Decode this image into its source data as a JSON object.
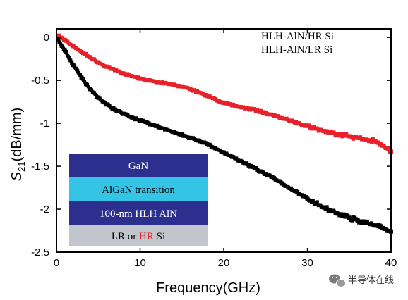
{
  "chart_data": {
    "type": "scatter",
    "title": "",
    "xlabel": "Frequency(GHz)",
    "ylabel_main": "S",
    "ylabel_sub": "21",
    "ylabel_rest": "(dB/mm)",
    "xlim": [
      0,
      40
    ],
    "ylim": [
      -2.5,
      0.1
    ],
    "x_ticks": [
      0,
      10,
      20,
      30,
      40
    ],
    "x_tick_labels": [
      "0",
      "10",
      "20",
      "30",
      "40"
    ],
    "y_ticks": [
      0,
      -0.5,
      -1,
      -1.5,
      -2,
      -2.5
    ],
    "y_tick_labels": [
      "0",
      "-0.5",
      "-1",
      "-1.5",
      "-2",
      "-2.5"
    ],
    "grid": false,
    "legend_position": "top-right",
    "series": [
      {
        "name": "HLH-AlN/HR Si",
        "color": "#e8202a",
        "x": [
          0.2,
          1,
          2,
          3,
          4,
          5,
          6,
          7,
          8,
          9,
          10,
          11,
          12,
          13,
          14,
          15,
          16,
          17,
          18,
          19,
          20,
          21,
          22,
          23,
          24,
          25,
          26,
          27,
          28,
          29,
          30,
          31,
          32,
          33,
          34,
          35,
          36,
          37,
          38,
          39,
          40
        ],
        "y": [
          0.02,
          -0.03,
          -0.1,
          -0.17,
          -0.23,
          -0.29,
          -0.34,
          -0.38,
          -0.42,
          -0.45,
          -0.48,
          -0.5,
          -0.52,
          -0.53,
          -0.55,
          -0.57,
          -0.6,
          -0.64,
          -0.68,
          -0.72,
          -0.76,
          -0.79,
          -0.81,
          -0.83,
          -0.85,
          -0.88,
          -0.91,
          -0.94,
          -0.97,
          -1.0,
          -1.03,
          -1.06,
          -1.09,
          -1.11,
          -1.13,
          -1.15,
          -1.17,
          -1.19,
          -1.21,
          -1.26,
          -1.33
        ]
      },
      {
        "name": "HLH-AlN/LR Si",
        "color": "#000000",
        "x": [
          0.2,
          1,
          2,
          3,
          4,
          5,
          6,
          7,
          8,
          9,
          10,
          11,
          12,
          13,
          14,
          15,
          16,
          17,
          18,
          19,
          20,
          21,
          22,
          23,
          24,
          25,
          26,
          27,
          28,
          29,
          30,
          31,
          32,
          33,
          34,
          35,
          36,
          37,
          38,
          39,
          40
        ],
        "y": [
          -0.03,
          -0.15,
          -0.32,
          -0.47,
          -0.6,
          -0.7,
          -0.78,
          -0.84,
          -0.89,
          -0.93,
          -0.97,
          -1.0,
          -1.03,
          -1.07,
          -1.1,
          -1.13,
          -1.17,
          -1.2,
          -1.24,
          -1.29,
          -1.34,
          -1.39,
          -1.44,
          -1.49,
          -1.54,
          -1.59,
          -1.64,
          -1.7,
          -1.76,
          -1.82,
          -1.88,
          -1.93,
          -1.98,
          -2.02,
          -2.06,
          -2.1,
          -2.13,
          -2.16,
          -2.19,
          -2.22,
          -2.26
        ]
      }
    ],
    "inset": {
      "layers": [
        {
          "label": "GaN",
          "color": "#2d2f8f",
          "text_color": "#ffffff"
        },
        {
          "label": "AlGaN transition",
          "color": "#33c4e6",
          "text_color": "#000000"
        },
        {
          "label": "100-nm HLH AlN",
          "color": "#2d2f8f",
          "text_color": "#ffffff"
        },
        {
          "label_prefix": "LR or ",
          "label_highlight": "HR",
          "label_suffix": " Si",
          "color": "#c2c6cc",
          "text_color": "#000000",
          "highlight_color": "#e8202a"
        }
      ]
    }
  },
  "watermark": {
    "text": "半导体在线",
    "icon": "wechat-icon",
    "icon_color": "#7a7a7a"
  }
}
